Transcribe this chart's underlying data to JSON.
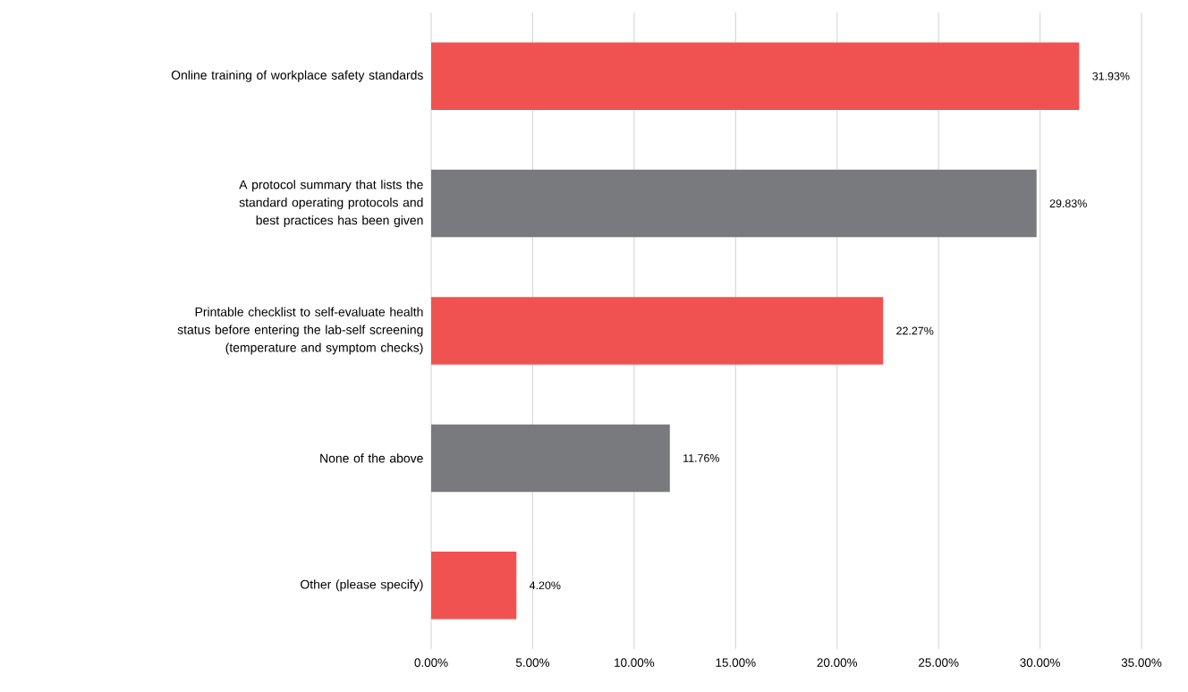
{
  "chart_data": {
    "type": "bar",
    "orientation": "horizontal",
    "categories": [
      "Online training of workplace safety standards",
      "A protocol summary that lists the standard operating protocols and best practices has been given",
      "Printable checklist to self-evaluate health status before entering the lab-self screening (temperature and symptom checks)",
      "None of the above",
      "Other (please specify)"
    ],
    "values": [
      31.93,
      29.83,
      22.27,
      11.76,
      4.2
    ],
    "value_labels": [
      "31.93%",
      "29.83%",
      "22.27%",
      "11.76%",
      "4.20%"
    ],
    "colors": [
      "#f05252",
      "#797a7e",
      "#f05252",
      "#797a7e",
      "#f05252"
    ],
    "xlim": [
      0,
      35
    ],
    "xticks": [
      {
        "value": 0,
        "label": "0.00%"
      },
      {
        "value": 5,
        "label": "5.00%"
      },
      {
        "value": 10,
        "label": "10.00%"
      },
      {
        "value": 15,
        "label": "15.00%"
      },
      {
        "value": 20,
        "label": "20.00%"
      },
      {
        "value": 25,
        "label": "25.00%"
      },
      {
        "value": 30,
        "label": "30.00%"
      },
      {
        "value": 35,
        "label": "35.00%"
      }
    ],
    "grid": "x"
  }
}
